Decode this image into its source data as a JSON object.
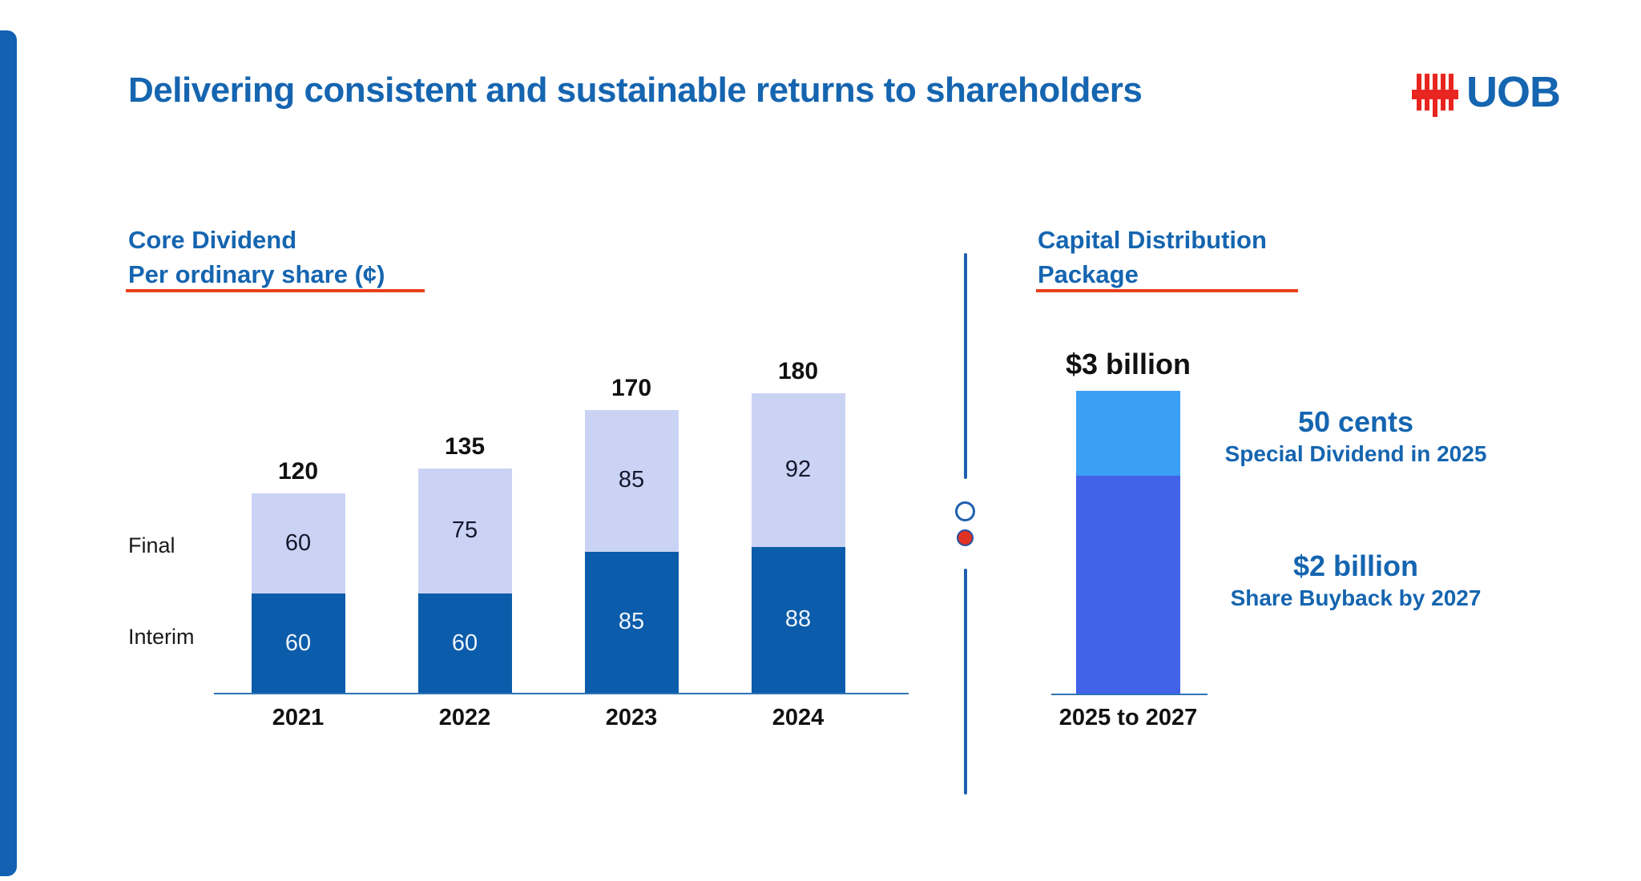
{
  "title": "Delivering consistent and sustainable returns to shareholders",
  "logo": {
    "text": "UOB"
  },
  "colors": {
    "heading_blue": "#1565b0",
    "accent_red": "#e8401c",
    "interim_bar": "#0b5caa",
    "final_bar": "#cbd3f4",
    "special_dividend_bar": "#3b9ff4",
    "buyback_bar": "#4263e8",
    "divider_blue": "#2060b0",
    "bullet_red": "#e03222",
    "accent_bar_blue": "#1261b3"
  },
  "left_section": {
    "heading_line1": "Core Dividend",
    "heading_line2": "Per ordinary share (¢)",
    "row_labels": {
      "final": "Final",
      "interim": "Interim"
    }
  },
  "right_section": {
    "heading_line1": "Capital Distribution",
    "heading_line2": "Package",
    "bar_total_label": "$3 billion",
    "bar_axis_label": "2025 to 2027",
    "callouts": [
      {
        "value": "50 cents",
        "caption": "Special Dividend in 2025"
      },
      {
        "value": "$2 billion",
        "caption": "Share Buyback by 2027"
      }
    ]
  },
  "chart_data": [
    {
      "type": "bar",
      "stacked": true,
      "title": "Core Dividend Per ordinary share (¢)",
      "categories": [
        "2021",
        "2022",
        "2023",
        "2024"
      ],
      "series": [
        {
          "name": "Interim",
          "values": [
            60,
            60,
            85,
            88
          ],
          "color": "#0b5caa"
        },
        {
          "name": "Final",
          "values": [
            60,
            75,
            85,
            92
          ],
          "color": "#cbd3f4"
        }
      ],
      "totals": [
        120,
        135,
        170,
        180
      ],
      "xlabel": "",
      "ylabel": "",
      "ylim": [
        0,
        200
      ],
      "grid": false,
      "legend_position": "left-of-bars"
    },
    {
      "type": "bar",
      "stacked": true,
      "title": "Capital Distribution Package",
      "categories": [
        "2025 to 2027"
      ],
      "series": [
        {
          "name": "Share Buyback by 2027",
          "values": [
            "$2 billion"
          ],
          "color": "#4263e8"
        },
        {
          "name": "Special Dividend in 2025",
          "values": [
            "50 cents"
          ],
          "color": "#3b9ff4"
        }
      ],
      "totals": [
        "$3 billion"
      ],
      "grid": false,
      "legend_position": "right-of-bar"
    }
  ]
}
